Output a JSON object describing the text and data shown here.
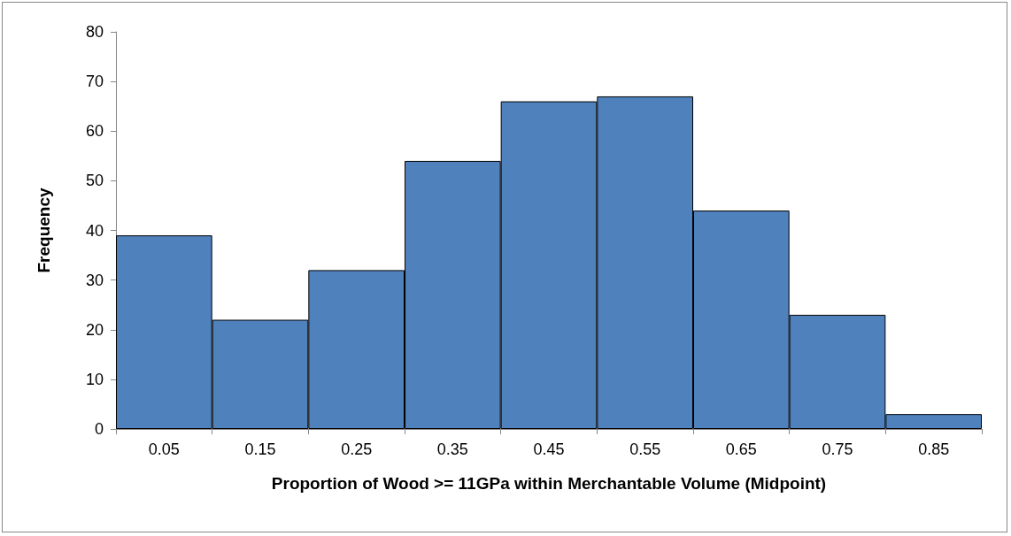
{
  "chart_data": {
    "type": "bar",
    "xlabel": "Proportion of Wood >= 11GPa within Merchantable Volume (Midpoint)",
    "ylabel": "Frequency",
    "categories": [
      "0.05",
      "0.15",
      "0.25",
      "0.35",
      "0.45",
      "0.55",
      "0.65",
      "0.75",
      "0.85"
    ],
    "values": [
      39,
      22,
      32,
      54,
      66,
      67,
      44,
      23,
      3
    ],
    "color": "#4f81bd",
    "ylim": [
      0,
      80
    ],
    "yticks": [
      0,
      10,
      20,
      30,
      40,
      50,
      60,
      70,
      80
    ]
  }
}
